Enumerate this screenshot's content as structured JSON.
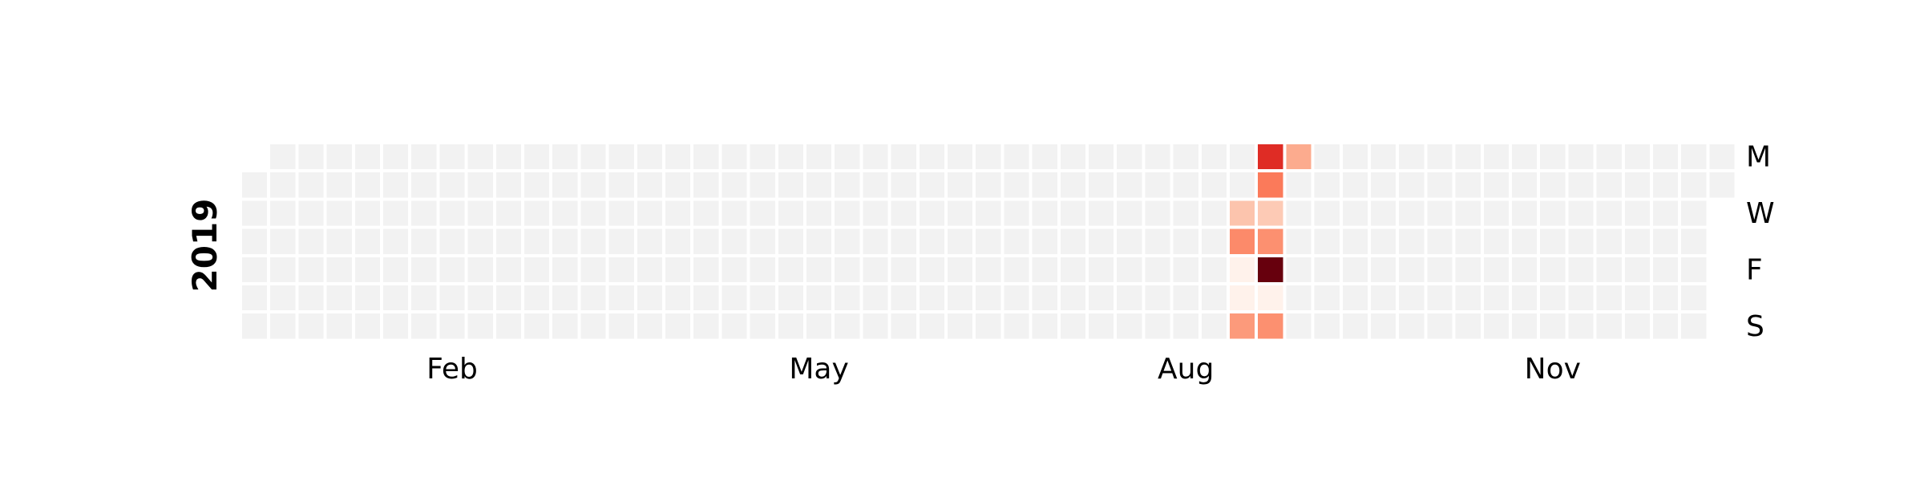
{
  "chart_data": {
    "type": "heatmap",
    "year": "2019",
    "day_labels": [
      "M",
      "",
      "W",
      "",
      "F",
      "",
      "S"
    ],
    "month_labels": [
      "Feb",
      "May",
      "Aug",
      "Nov"
    ],
    "grid": {
      "weeks": 53,
      "days_per_week": 7,
      "empty_color": "#f2f2f2",
      "first_week_starts_day": 1,
      "last_week_ends_day": 1
    },
    "colormap": "Reds",
    "value_range": [
      0,
      1
    ],
    "values": [
      {
        "week": 35,
        "day": 2,
        "value": 0.22
      },
      {
        "week": 35,
        "day": 3,
        "value": 0.4
      },
      {
        "week": 35,
        "day": 4,
        "value": 0.02
      },
      {
        "week": 35,
        "day": 5,
        "value": 0.02
      },
      {
        "week": 35,
        "day": 6,
        "value": 0.35
      },
      {
        "week": 36,
        "day": 0,
        "value": 0.68
      },
      {
        "week": 36,
        "day": 1,
        "value": 0.45
      },
      {
        "week": 36,
        "day": 2,
        "value": 0.2
      },
      {
        "week": 36,
        "day": 3,
        "value": 0.38
      },
      {
        "week": 36,
        "day": 4,
        "value": 1.0
      },
      {
        "week": 36,
        "day": 5,
        "value": 0.02
      },
      {
        "week": 36,
        "day": 6,
        "value": 0.38
      },
      {
        "week": 37,
        "day": 0,
        "value": 0.3
      }
    ]
  }
}
